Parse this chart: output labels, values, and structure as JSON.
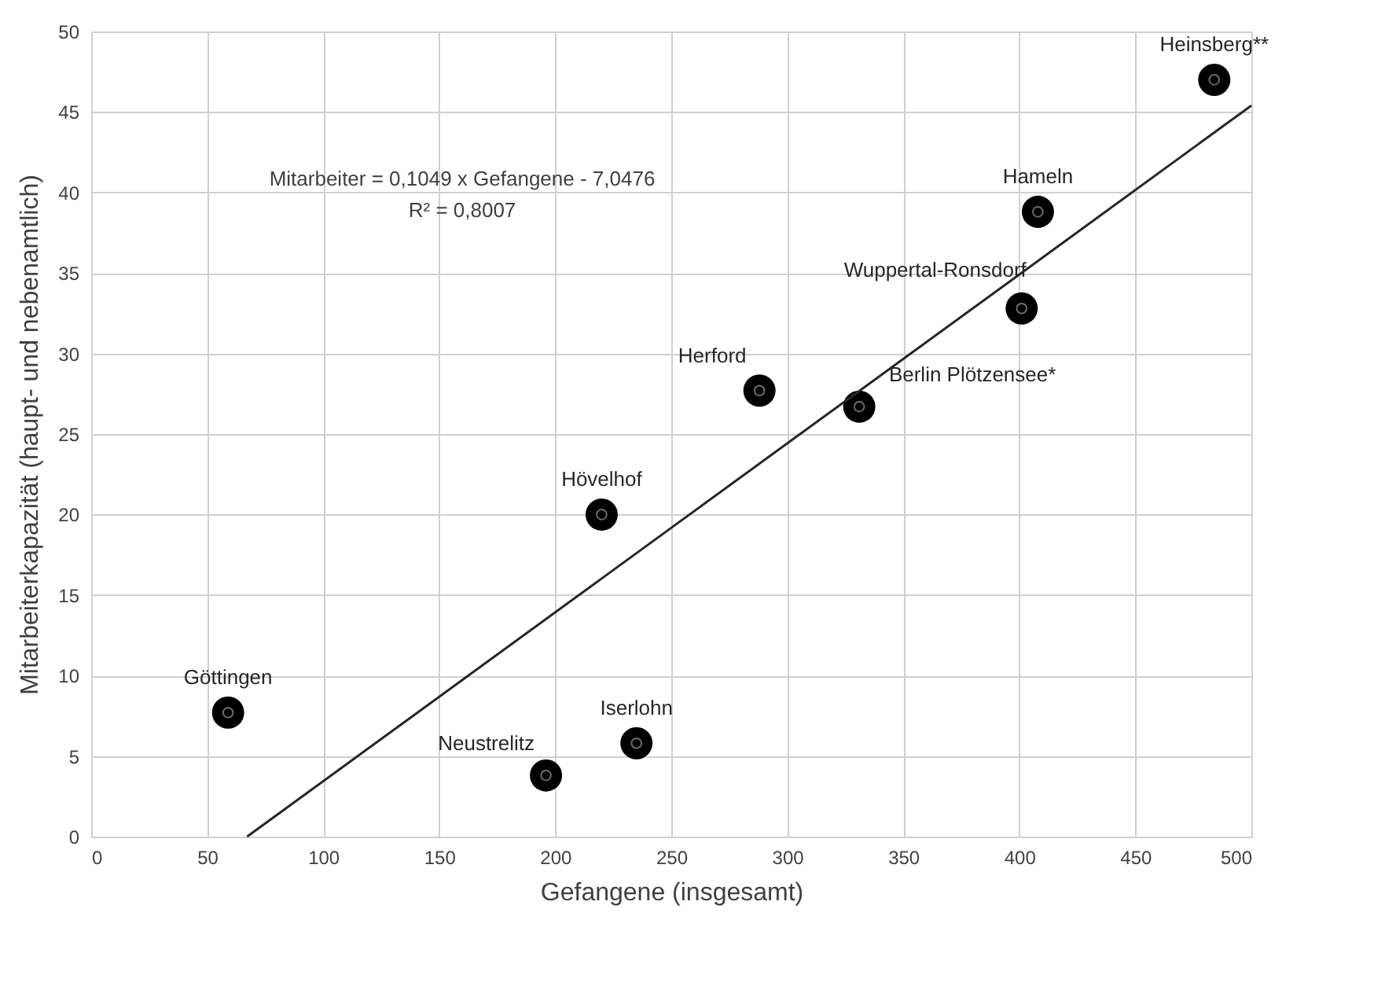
{
  "chart_data": {
    "type": "scatter",
    "xlabel": "Gefangene (insgesamt)",
    "ylabel": "Mitarbeiterkapazität (haupt- und nebenamtlich)",
    "series": [
      {
        "marker": "circle",
        "color": "#000000",
        "x": [
          59,
          196,
          235,
          220,
          288,
          331,
          401,
          408,
          484
        ],
        "values": [
          7.7,
          3.8,
          5.8,
          20,
          27.7,
          26.7,
          32.8,
          38.8,
          47
        ]
      },
      {
        "type": "line",
        "color": "#262626",
        "x": [
          67.2,
          500
        ],
        "values": [
          0,
          45.4
        ]
      }
    ],
    "annotations": [
      {
        "text": "Göttingen",
        "x": 59,
        "y": 7.7
      },
      {
        "text": "Neustrelitz",
        "x": 196,
        "y": 3.8
      },
      {
        "text": "Iserlohn",
        "x": 235,
        "y": 5.8
      },
      {
        "text": "Hövelhof",
        "x": 220,
        "y": 20
      },
      {
        "text": "Herford",
        "x": 288,
        "y": 27.7
      },
      {
        "text": "Berlin Plötzensee*",
        "x": 331,
        "y": 26.7
      },
      {
        "text": "Wuppertal-Ronsdorf",
        "x": 401,
        "y": 32.8
      },
      {
        "text": "Hameln",
        "x": 408,
        "y": 38.8
      },
      {
        "text": "Heinsberg**",
        "x": 484,
        "y": 47
      },
      "Mitarbeiter = 0,1049 x Gefangene - 7,0476",
      "R² = 0,8007"
    ],
    "xlim": [
      0,
      500
    ],
    "xticks": [
      0,
      50,
      100,
      150,
      200,
      250,
      300,
      350,
      400,
      450,
      500
    ],
    "ylim": [
      0,
      50
    ],
    "yticks": [
      0,
      5,
      10,
      15,
      20,
      25,
      30,
      35,
      40,
      45,
      50
    ],
    "grid": true
  }
}
